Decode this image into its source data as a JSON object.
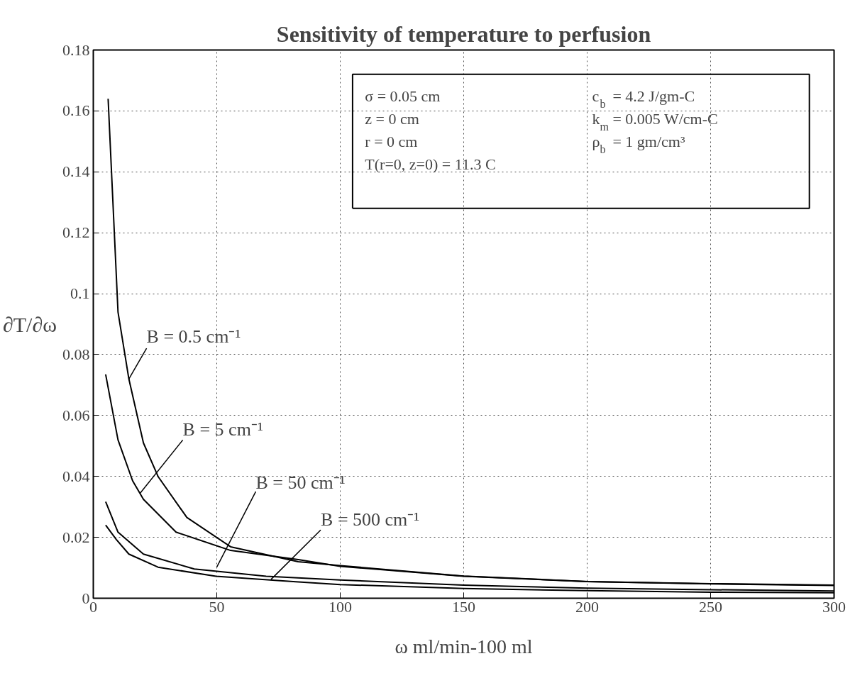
{
  "chart_data": {
    "type": "line",
    "title": "Sensitivity of temperature to perfusion",
    "xlabel": "ω ml/min-100 ml",
    "ylabel": "∂T/∂ω",
    "xlim": [
      0,
      300
    ],
    "ylim": [
      0,
      0.18
    ],
    "xticks": [
      0,
      50,
      100,
      150,
      200,
      250,
      300
    ],
    "yticks": [
      0,
      0.02,
      0.04,
      0.06,
      0.08,
      0.1,
      0.12,
      0.14,
      0.16,
      0.18
    ],
    "grid": true,
    "line_style": "solid",
    "marker": "none",
    "series": [
      {
        "color": "#000000",
        "x": [
          6,
          10,
          14.4,
          20.3,
          26.2,
          37.9,
          55.6,
          83,
          100,
          150,
          200,
          250,
          300
        ],
        "values": [
          0.164,
          0.094,
          0.072,
          0.051,
          0.04,
          0.0265,
          0.0169,
          0.012,
          0.0107,
          0.0073,
          0.0055,
          0.0048,
          0.0043
        ]
      },
      {
        "color": "#000000",
        "x": [
          5,
          10,
          15.9,
          20.3,
          33.5,
          55.6,
          83,
          100,
          150,
          200,
          250,
          300
        ],
        "values": [
          0.0735,
          0.052,
          0.0386,
          0.0325,
          0.0217,
          0.0157,
          0.0127,
          0.0105,
          0.0072,
          0.0055,
          0.0047,
          0.0042
        ]
      },
      {
        "color": "#000000",
        "x": [
          5,
          10,
          20.3,
          40.9,
          70,
          100,
          150,
          200,
          250,
          300
        ],
        "values": [
          0.0317,
          0.0217,
          0.0145,
          0.0096,
          0.0072,
          0.006,
          0.0043,
          0.0033,
          0.0028,
          0.0024
        ]
      },
      {
        "color": "#000000",
        "x": [
          5,
          9.3,
          14.4,
          26.2,
          49.7,
          82,
          100,
          150,
          200,
          250,
          300
        ],
        "values": [
          0.024,
          0.0193,
          0.0145,
          0.0102,
          0.0072,
          0.0054,
          0.0045,
          0.0032,
          0.0025,
          0.002,
          0.0018
        ]
      }
    ],
    "annotations": [
      {
        "text": "B = 0.5 cm⁻¹",
        "x": 14.4,
        "y": 0.072
      },
      {
        "text": "B = 5 cm⁻¹",
        "x": 19,
        "y": 0.0345
      },
      {
        "text": "B = 50 cm⁻¹",
        "x": 50,
        "y": 0.0102
      },
      {
        "text": "B = 500 cm⁻¹",
        "x": 72,
        "y": 0.0062
      },
      "σ = 0.05 cm",
      "z  = 0 cm",
      "r  = 0 cm",
      "T(r=0, z=0) = 11.3 C",
      "c$_{b}$ = 4.2 J/gm-C",
      "k$_{m}$ = 0.005 W/cm-C",
      "ρ$_{b}$ = 1 gm/cm³"
    ]
  }
}
